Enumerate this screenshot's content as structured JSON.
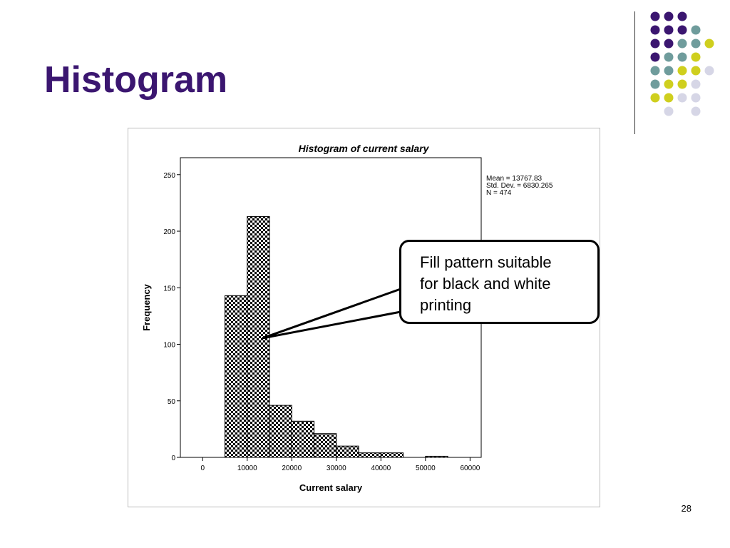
{
  "slide": {
    "title": "Histogram",
    "slide_number": "28",
    "callout": {
      "lines": [
        "Fill pattern suitable",
        "for black and white",
        "printing"
      ]
    }
  },
  "colors": {
    "title": "#3b1670",
    "dot_purple": "#3b1670",
    "dot_teal": "#6f9c9c",
    "dot_yellow": "#cfcf1e",
    "dot_lavender": "#d6d6e6"
  },
  "chart_data": {
    "type": "bar",
    "title": "Histogram of current salary",
    "xlabel": "Current salary",
    "ylabel": "Frequency",
    "xlim": [
      -5000,
      62500
    ],
    "ylim": [
      0,
      265
    ],
    "xticks": [
      0,
      10000,
      20000,
      30000,
      40000,
      50000,
      60000
    ],
    "yticks": [
      0,
      50,
      100,
      150,
      200,
      250
    ],
    "bin_width": 5000,
    "bins": [
      {
        "start": 5000,
        "end": 10000,
        "count": 143
      },
      {
        "start": 10000,
        "end": 15000,
        "count": 213
      },
      {
        "start": 15000,
        "end": 20000,
        "count": 46
      },
      {
        "start": 20000,
        "end": 25000,
        "count": 32
      },
      {
        "start": 25000,
        "end": 30000,
        "count": 21
      },
      {
        "start": 30000,
        "end": 35000,
        "count": 10
      },
      {
        "start": 35000,
        "end": 40000,
        "count": 4
      },
      {
        "start": 40000,
        "end": 45000,
        "count": 4
      },
      {
        "start": 45000,
        "end": 50000,
        "count": 0
      },
      {
        "start": 50000,
        "end": 55000,
        "count": 1
      }
    ],
    "fill": "checkerboard",
    "stats": [
      "Mean = 13767.83",
      "Std. Dev. = 6830.265",
      "N = 474"
    ],
    "grid": false
  }
}
